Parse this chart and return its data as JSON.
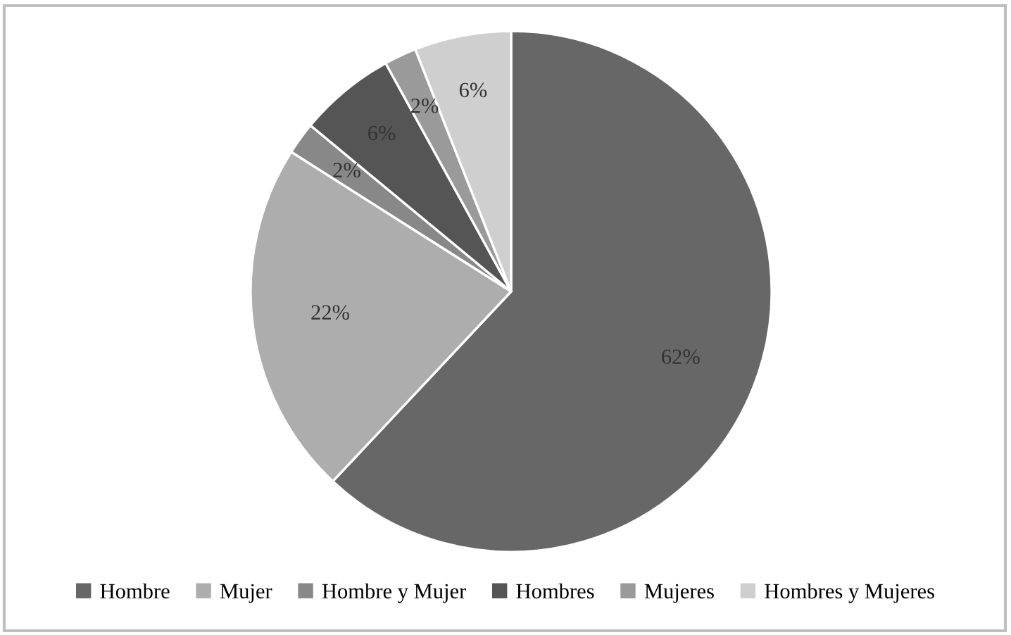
{
  "chart_data": {
    "type": "pie",
    "categories": [
      "Hombre",
      "Mujer",
      "Hombre y Mujer",
      "Hombres",
      "Mujeres",
      "Hombres y Mujeres"
    ],
    "values": [
      62,
      22,
      2,
      6,
      2,
      6
    ],
    "colors": [
      "#676767",
      "#adadad",
      "#888888",
      "#555555",
      "#9a9a9a",
      "#cfcfcf"
    ],
    "value_labels": [
      "62%",
      "22%",
      "2%",
      "6%",
      "2%",
      "6%"
    ],
    "legend": "bottom"
  }
}
